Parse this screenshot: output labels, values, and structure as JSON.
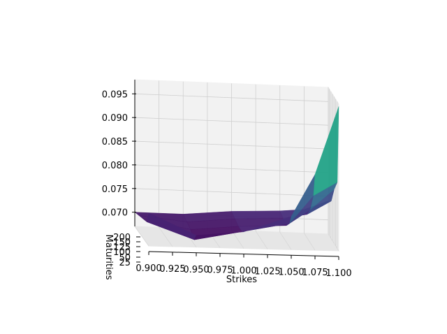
{
  "chart_data": {
    "type": "surface3d",
    "colormap": "viridis",
    "xlabel": "Strikes",
    "ylabel": "Maturities",
    "zlabel": "",
    "x_ticks": [
      "0.900",
      "0.925",
      "0.950",
      "0.975",
      "1.000",
      "1.025",
      "1.050",
      "1.075",
      "1.100"
    ],
    "y_ticks": [
      "25",
      "50",
      "100",
      "125",
      "150",
      "200"
    ],
    "z_ticks": [
      "0.070",
      "0.075",
      "0.080",
      "0.085",
      "0.090",
      "0.095"
    ],
    "xlim": [
      0.9,
      1.1
    ],
    "ylim": [
      25,
      200
    ],
    "zlim": [
      0.067,
      0.098
    ],
    "grid": true,
    "strikes": [
      0.9,
      0.95,
      1.0,
      1.05,
      1.075,
      1.1
    ],
    "maturities": [
      25,
      50,
      100,
      150,
      200
    ],
    "z": [
      [
        0.074,
        0.0695,
        0.0705,
        0.074,
        0.083,
        0.0975
      ],
      [
        0.0715,
        0.068,
        0.07,
        0.072,
        0.078,
        0.081
      ],
      [
        0.071,
        0.069,
        0.07,
        0.0705,
        0.074,
        0.0785
      ],
      [
        0.0705,
        0.0695,
        0.0705,
        0.071,
        0.072,
        0.075
      ],
      [
        0.07,
        0.07,
        0.071,
        0.0715,
        0.072,
        0.074
      ]
    ]
  }
}
